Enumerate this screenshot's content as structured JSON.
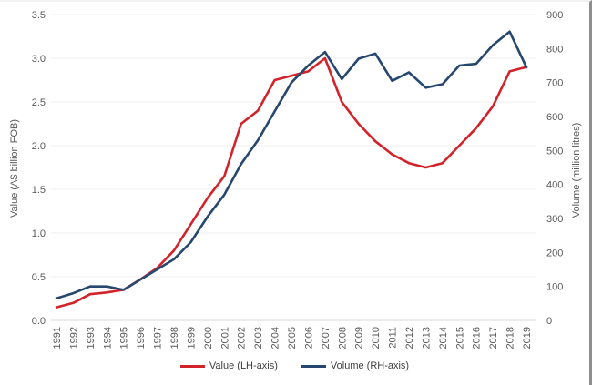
{
  "chart_data": {
    "type": "line",
    "x": [
      1991,
      1992,
      1993,
      1994,
      1995,
      1996,
      1997,
      1998,
      1999,
      2000,
      2001,
      2002,
      2003,
      2004,
      2005,
      2006,
      2007,
      2008,
      2009,
      2010,
      2011,
      2012,
      2013,
      2014,
      2015,
      2016,
      2017,
      2018,
      2019
    ],
    "series": [
      {
        "name": "Value (LH-axis)",
        "axis": "left",
        "color": "#d2232a",
        "values": [
          0.15,
          0.2,
          0.3,
          0.32,
          0.35,
          0.47,
          0.6,
          0.8,
          1.1,
          1.4,
          1.65,
          2.25,
          2.4,
          2.75,
          2.8,
          2.85,
          3.0,
          2.5,
          2.25,
          2.05,
          1.9,
          1.8,
          1.75,
          1.8,
          2.0,
          2.2,
          2.45,
          2.85,
          2.9
        ]
      },
      {
        "name": "Volume (RH-axis)",
        "axis": "right",
        "color": "#26476e",
        "values": [
          65,
          80,
          100,
          100,
          90,
          120,
          150,
          180,
          230,
          305,
          370,
          460,
          530,
          615,
          700,
          750,
          790,
          710,
          770,
          785,
          705,
          730,
          685,
          695,
          750,
          755,
          810,
          850,
          745
        ]
      }
    ],
    "left_axis": {
      "label": "Value (A$ billion FOB)",
      "min": 0,
      "max": 3.5,
      "tick_step": 0.5,
      "tick_labels": [
        "0.0",
        "0.5",
        "1.0",
        "1.5",
        "2.0",
        "2.5",
        "3.0",
        "3.5"
      ]
    },
    "right_axis": {
      "label": "Volume (million litres)",
      "min": 0,
      "max": 900,
      "tick_step": 100,
      "tick_labels": [
        "0",
        "100",
        "200",
        "300",
        "400",
        "500",
        "600",
        "700",
        "800",
        "900"
      ]
    },
    "grid": true,
    "legend_position": "bottom",
    "colors": {
      "grid": "#efefef",
      "baseline": "#d9d9d9",
      "tick_text": "#595959"
    }
  }
}
